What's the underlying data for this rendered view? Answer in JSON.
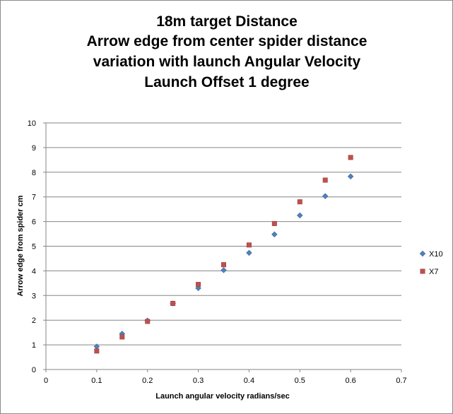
{
  "chart_data": {
    "type": "scatter",
    "title_lines": [
      "18m target Distance",
      "Arrow edge from center spider distance",
      "variation with launch Angular Velocity",
      "Launch Offset 1 degree"
    ],
    "xlabel": "Launch angular  velocity radians/sec",
    "ylabel": "Arrow edge from spider cm",
    "xlim": [
      0,
      0.7
    ],
    "ylim": [
      0,
      10
    ],
    "x_ticks": [
      0,
      0.1,
      0.2,
      0.3,
      0.4,
      0.5,
      0.6,
      0.7
    ],
    "y_ticks": [
      0,
      1,
      2,
      3,
      4,
      5,
      6,
      7,
      8,
      9,
      10
    ],
    "x_tick_labels": [
      "0",
      "0.1",
      "0.2",
      "0.3",
      "0.4",
      "0.5",
      "0.6",
      "0.7"
    ],
    "y_tick_labels": [
      "0",
      "1",
      "2",
      "3",
      "4",
      "5",
      "6",
      "7",
      "8",
      "9",
      "10"
    ],
    "grid": "horizontal major",
    "legend_position": "right",
    "series": [
      {
        "name": "X10",
        "marker": "diamond",
        "color": "#4f81bd",
        "x": [
          0.1,
          0.15,
          0.2,
          0.25,
          0.3,
          0.35,
          0.4,
          0.45,
          0.5,
          0.55,
          0.6
        ],
        "y": [
          0.93,
          1.45,
          1.98,
          2.68,
          3.3,
          4.03,
          4.73,
          5.48,
          6.25,
          7.03,
          7.83
        ]
      },
      {
        "name": "X7",
        "marker": "square",
        "color": "#c0504d",
        "x": [
          0.1,
          0.15,
          0.2,
          0.25,
          0.3,
          0.35,
          0.4,
          0.45,
          0.5,
          0.55,
          0.6
        ],
        "y": [
          0.75,
          1.32,
          1.95,
          2.68,
          3.45,
          4.25,
          5.05,
          5.92,
          6.8,
          7.68,
          8.6
        ]
      }
    ]
  }
}
